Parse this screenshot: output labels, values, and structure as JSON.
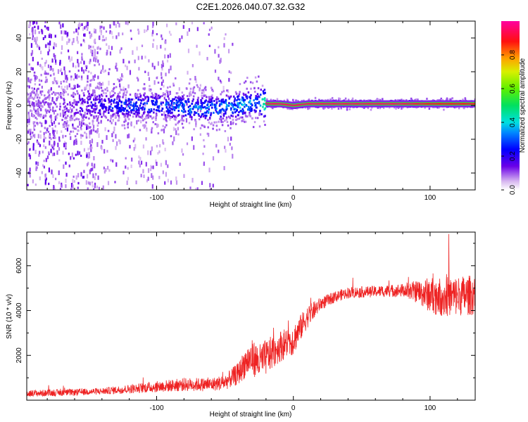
{
  "title": "C2E1.2026.040.07.32.G32",
  "chart_data": [
    {
      "type": "heatmap",
      "name": "spectrogram",
      "xlabel": "Height of straight line (km)",
      "ylabel": "Frequency (Hz)",
      "xlim": [
        -195,
        133
      ],
      "ylim": [
        -50,
        50
      ],
      "xticks": [
        -100,
        0,
        100
      ],
      "xtick_labels": [
        "-100",
        "0",
        "100"
      ],
      "yticks": [
        -40,
        -20,
        0,
        20,
        40
      ],
      "ytick_labels": [
        "-40",
        "-20",
        "0",
        "20",
        "40"
      ],
      "colorbar": {
        "label": "Normalized spectral amplitude",
        "range": [
          0,
          1
        ],
        "ticks": [
          0.0,
          0.2,
          0.4,
          0.6,
          0.8
        ],
        "tick_labels": [
          "0.0",
          "0.2",
          "0.4",
          "0.6",
          "0.8"
        ]
      },
      "ridge": {
        "x": [
          -195,
          -160,
          -140,
          -120,
          -100,
          -80,
          -60,
          -40,
          -25,
          -20,
          -10,
          0,
          10,
          40,
          80,
          100,
          133
        ],
        "freq": [
          0,
          0,
          0,
          0,
          0,
          -1,
          -2,
          0,
          2,
          1,
          1,
          0,
          1,
          1,
          1,
          1,
          1
        ],
        "amplitude": [
          0.1,
          0.15,
          0.25,
          0.3,
          0.3,
          0.35,
          0.35,
          0.4,
          0.35,
          0.95,
          0.95,
          0.95,
          0.95,
          0.95,
          0.95,
          0.9,
          0.9
        ]
      }
    },
    {
      "type": "line",
      "name": "snr",
      "xlabel": "Height of straight line (km)",
      "ylabel": "SNR (10 * v/v)",
      "xlim": [
        -195,
        133
      ],
      "ylim": [
        0,
        7500
      ],
      "xticks": [
        -100,
        0,
        100
      ],
      "xtick_labels": [
        "-100",
        "0",
        "100"
      ],
      "yticks": [
        2000,
        4000,
        6000
      ],
      "ytick_labels": [
        "2000",
        "4000",
        "6000"
      ],
      "series": [
        {
          "name": "SNR",
          "color": "#ee2222",
          "x": [
            -195,
            -180,
            -160,
            -140,
            -120,
            -100,
            -80,
            -60,
            -50,
            -40,
            -35,
            -30,
            -25,
            -20,
            -10,
            0,
            5,
            10,
            20,
            30,
            40,
            60,
            80,
            90,
            100,
            110,
            120,
            133
          ],
          "y": [
            300,
            320,
            350,
            400,
            500,
            600,
            700,
            700,
            800,
            1200,
            1700,
            1900,
            1700,
            1900,
            2400,
            2700,
            3200,
            3700,
            4300,
            4600,
            4800,
            4850,
            4900,
            4850,
            4700,
            4600,
            4650,
            4700
          ],
          "noise": [
            150,
            150,
            150,
            150,
            200,
            250,
            300,
            300,
            350,
            500,
            700,
            800,
            800,
            800,
            700,
            700,
            600,
            500,
            300,
            250,
            250,
            250,
            300,
            500,
            800,
            900,
            900,
            900
          ]
        }
      ]
    }
  ]
}
